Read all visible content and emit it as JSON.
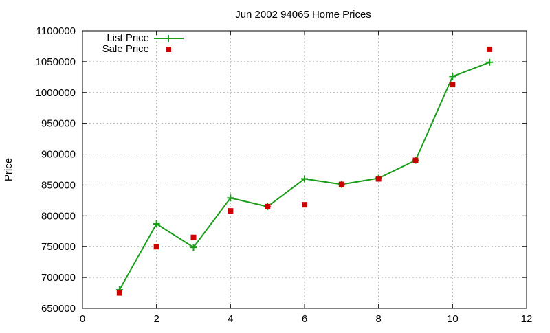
{
  "chart_data": {
    "type": "line",
    "title": "Jun 2002 94065 Home Prices",
    "xlabel": "",
    "ylabel": "Price",
    "xlim": [
      0,
      12
    ],
    "ylim": [
      650000,
      1100000
    ],
    "x_ticks": [
      0,
      2,
      4,
      6,
      8,
      10,
      12
    ],
    "y_ticks": [
      650000,
      700000,
      750000,
      800000,
      850000,
      900000,
      950000,
      1000000,
      1050000,
      1100000
    ],
    "grid": true,
    "legend_position": "top-left",
    "series": [
      {
        "name": "List Price",
        "style": "line+cross",
        "color": "#1a9e1a",
        "x": [
          1,
          2,
          3,
          4,
          5,
          6,
          7,
          8,
          9,
          10,
          11
        ],
        "y": [
          680000,
          787000,
          749000,
          829000,
          815000,
          860000,
          851000,
          861000,
          890000,
          1026000,
          1049000
        ]
      },
      {
        "name": "Sale Price",
        "style": "square",
        "color": "#cc0000",
        "x": [
          1,
          2,
          3,
          4,
          5,
          6,
          7,
          8,
          9,
          10,
          11
        ],
        "y": [
          675000,
          750000,
          765000,
          808000,
          815000,
          818000,
          851000,
          860000,
          890000,
          1013000,
          1070000
        ]
      }
    ]
  }
}
